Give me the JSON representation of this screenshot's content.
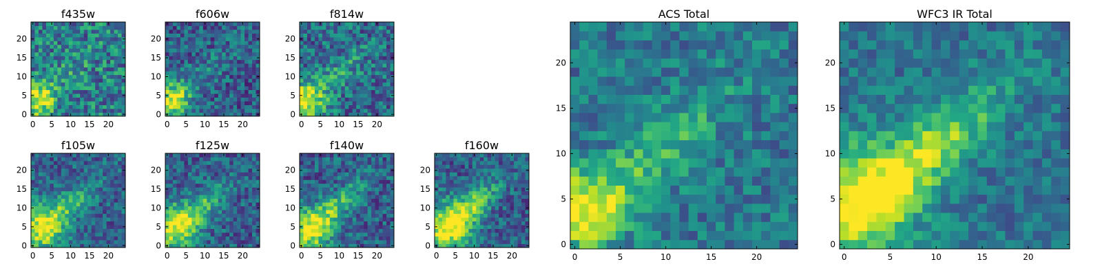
{
  "chart_data": [
    {
      "type": "heatmap",
      "title": "f435w",
      "xlim": [
        0,
        24
      ],
      "ylim": [
        0,
        24
      ],
      "xticks": [
        "0",
        "5",
        "10",
        "15",
        "20"
      ],
      "yticks": [
        "0",
        "5",
        "10",
        "15",
        "20"
      ],
      "colormap": "viridis",
      "grid": false,
      "hotspot": {
        "x": 1,
        "y": 4,
        "spread": 3.0
      },
      "diffuse": 0.12,
      "noise": 0.55,
      "background": 0.42
    },
    {
      "type": "heatmap",
      "title": "f606w",
      "xlim": [
        0,
        24
      ],
      "ylim": [
        0,
        24
      ],
      "xticks": [
        "0",
        "5",
        "10",
        "15",
        "20"
      ],
      "yticks": [
        "0",
        "5",
        "10",
        "15",
        "20"
      ],
      "colormap": "viridis",
      "grid": false,
      "hotspot": {
        "x": 1,
        "y": 4,
        "spread": 3.5
      },
      "diffuse": 0.18,
      "noise": 0.45,
      "background": 0.3
    },
    {
      "type": "heatmap",
      "title": "f814w",
      "xlim": [
        0,
        24
      ],
      "ylim": [
        0,
        24
      ],
      "xticks": [
        "0",
        "5",
        "10",
        "15",
        "20"
      ],
      "yticks": [
        "0",
        "5",
        "10",
        "15",
        "20"
      ],
      "colormap": "viridis",
      "grid": false,
      "hotspot": {
        "x": 1,
        "y": 4,
        "spread": 3.5
      },
      "diffuse": 0.2,
      "noise": 0.5,
      "background": 0.36
    },
    {
      "type": "heatmap",
      "title": "f105w",
      "xlim": [
        0,
        24
      ],
      "ylim": [
        0,
        24
      ],
      "xticks": [
        "0",
        "5",
        "10",
        "15",
        "20"
      ],
      "yticks": [
        "0",
        "5",
        "10",
        "15",
        "20"
      ],
      "colormap": "viridis",
      "grid": false,
      "hotspot": {
        "x": 2,
        "y": 5,
        "spread": 4.5
      },
      "diffuse": 0.32,
      "noise": 0.4,
      "background": 0.32
    },
    {
      "type": "heatmap",
      "title": "f125w",
      "xlim": [
        0,
        24
      ],
      "ylim": [
        0,
        24
      ],
      "xticks": [
        "0",
        "5",
        "10",
        "15",
        "20"
      ],
      "yticks": [
        "0",
        "5",
        "10",
        "15",
        "20"
      ],
      "colormap": "viridis",
      "grid": false,
      "hotspot": {
        "x": 2,
        "y": 5,
        "spread": 4.5
      },
      "diffuse": 0.35,
      "noise": 0.42,
      "background": 0.3
    },
    {
      "type": "heatmap",
      "title": "f140w",
      "xlim": [
        0,
        24
      ],
      "ylim": [
        0,
        24
      ],
      "xticks": [
        "0",
        "5",
        "10",
        "15",
        "20"
      ],
      "yticks": [
        "0",
        "5",
        "10",
        "15",
        "20"
      ],
      "colormap": "viridis",
      "grid": false,
      "hotspot": {
        "x": 2,
        "y": 4,
        "spread": 4.5
      },
      "diffuse": 0.38,
      "noise": 0.42,
      "background": 0.3
    },
    {
      "type": "heatmap",
      "title": "f160w",
      "xlim": [
        0,
        24
      ],
      "ylim": [
        0,
        24
      ],
      "xticks": [
        "0",
        "5",
        "10",
        "15",
        "20"
      ],
      "yticks": [
        "0",
        "5",
        "10",
        "15",
        "20"
      ],
      "colormap": "viridis",
      "grid": false,
      "hotspot": {
        "x": 3,
        "y": 5,
        "spread": 5.0
      },
      "diffuse": 0.45,
      "noise": 0.4,
      "background": 0.3
    },
    {
      "type": "heatmap",
      "title": "ACS Total",
      "xlim": [
        0,
        24
      ],
      "ylim": [
        0,
        24
      ],
      "xticks": [
        "0",
        "5",
        "10",
        "15",
        "20"
      ],
      "yticks": [
        "0",
        "5",
        "10",
        "15",
        "20"
      ],
      "colormap": "viridis",
      "grid": false,
      "hotspot": {
        "x": 1,
        "y": 4,
        "spread": 3.0
      },
      "diffuse": 0.28,
      "noise": 0.35,
      "background": 0.4
    },
    {
      "type": "heatmap",
      "title": "WFC3 IR Total",
      "xlim": [
        0,
        24
      ],
      "ylim": [
        0,
        24
      ],
      "xticks": [
        "0",
        "5",
        "10",
        "15",
        "20"
      ],
      "yticks": [
        "0",
        "5",
        "10",
        "15",
        "20"
      ],
      "colormap": "viridis",
      "grid": false,
      "hotspot": {
        "x": 1,
        "y": 5,
        "spread": 4.5
      },
      "diffuse": 0.48,
      "noise": 0.3,
      "background": 0.38
    }
  ]
}
